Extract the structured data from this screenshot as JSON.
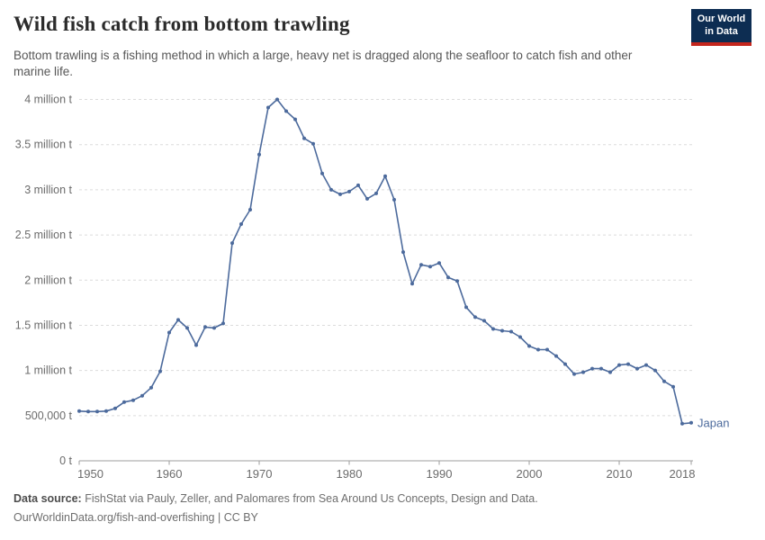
{
  "header": {
    "title": "Wild fish catch from bottom trawling",
    "subtitle": "Bottom trawling is a fishing method in which a large, heavy net is dragged along the seafloor to catch fish and other marine life.",
    "logo": {
      "line1": "Our World",
      "line2": "in Data",
      "bg_color": "#0d2d52",
      "accent_color": "#c4261d"
    }
  },
  "footer": {
    "label": "Data source:",
    "source": "FishStat via Pauly, Zeller, and Palomares from Sea Around Us Concepts, Design and Data.",
    "link": "OurWorldinData.org/fish-and-overfishing",
    "suffix": "| CC BY"
  },
  "chart_data": {
    "type": "line",
    "title": "Wild fish catch from bottom trawling",
    "xlabel": "",
    "ylabel": "tonnes",
    "grid": true,
    "xlim": [
      1950,
      2018
    ],
    "ylim": [
      0,
      4000000
    ],
    "legend_position": "end-of-line",
    "colors": {
      "line": "#4C6A9C",
      "grid": "#dcdcdc",
      "axis": "#9e9e9e",
      "tick_text": "#6b6b6b"
    },
    "x": [
      1950,
      1951,
      1952,
      1953,
      1954,
      1955,
      1956,
      1957,
      1958,
      1959,
      1960,
      1961,
      1962,
      1963,
      1964,
      1965,
      1966,
      1967,
      1968,
      1969,
      1970,
      1971,
      1972,
      1973,
      1974,
      1975,
      1976,
      1977,
      1978,
      1979,
      1980,
      1981,
      1982,
      1983,
      1984,
      1985,
      1986,
      1987,
      1988,
      1989,
      1990,
      1991,
      1992,
      1993,
      1994,
      1995,
      1996,
      1997,
      1998,
      1999,
      2000,
      2001,
      2002,
      2003,
      2004,
      2005,
      2006,
      2007,
      2008,
      2009,
      2010,
      2011,
      2012,
      2013,
      2014,
      2015,
      2016,
      2017,
      2018
    ],
    "series": [
      {
        "name": "Japan",
        "color": "#4C6A9C",
        "values": [
          550000,
          545000,
          545000,
          550000,
          580000,
          650000,
          670000,
          720000,
          810000,
          990000,
          1420000,
          1560000,
          1470000,
          1280000,
          1480000,
          1470000,
          1520000,
          2410000,
          2620000,
          2780000,
          3390000,
          3910000,
          4000000,
          3870000,
          3780000,
          3570000,
          3510000,
          3180000,
          3000000,
          2950000,
          2980000,
          3050000,
          2900000,
          2960000,
          3150000,
          2890000,
          2310000,
          1960000,
          2170000,
          2150000,
          2190000,
          2030000,
          1990000,
          1700000,
          1590000,
          1550000,
          1460000,
          1440000,
          1430000,
          1370000,
          1270000,
          1230000,
          1230000,
          1160000,
          1070000,
          960000,
          980000,
          1020000,
          1020000,
          980000,
          1060000,
          1070000,
          1020000,
          1060000,
          1000000,
          880000,
          820000,
          410000,
          420000
        ]
      }
    ],
    "yticks": [
      {
        "value": 0,
        "label": "0 t"
      },
      {
        "value": 500000,
        "label": "500,000 t"
      },
      {
        "value": 1000000,
        "label": "1 million t"
      },
      {
        "value": 1500000,
        "label": "1.5 million t"
      },
      {
        "value": 2000000,
        "label": "2 million t"
      },
      {
        "value": 2500000,
        "label": "2.5 million t"
      },
      {
        "value": 3000000,
        "label": "3 million t"
      },
      {
        "value": 3500000,
        "label": "3.5 million t"
      },
      {
        "value": 4000000,
        "label": "4 million t"
      }
    ],
    "xticks": [
      {
        "value": 1950,
        "label": "1950"
      },
      {
        "value": 1960,
        "label": "1960"
      },
      {
        "value": 1970,
        "label": "1970"
      },
      {
        "value": 1980,
        "label": "1980"
      },
      {
        "value": 1990,
        "label": "1990"
      },
      {
        "value": 2000,
        "label": "2000"
      },
      {
        "value": 2010,
        "label": "2010"
      },
      {
        "value": 2018,
        "label": "2018"
      }
    ]
  }
}
